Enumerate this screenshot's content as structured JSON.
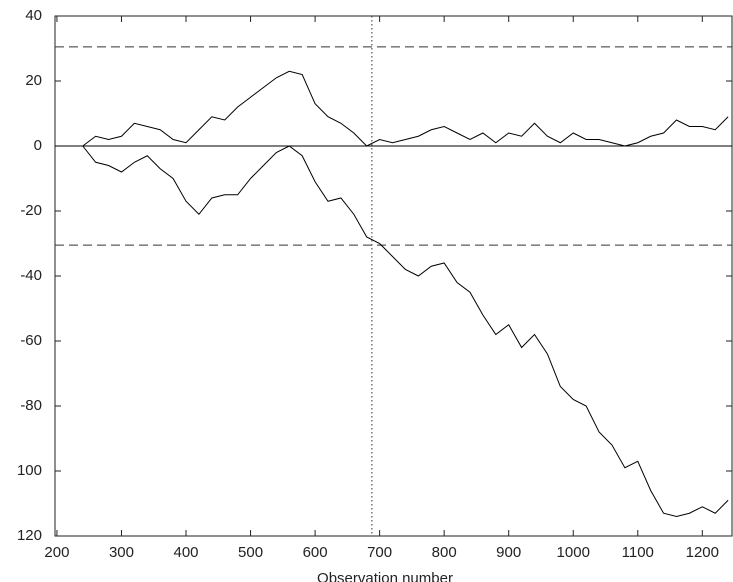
{
  "chart_data": {
    "type": "line",
    "x_label": "Observation number",
    "x": [
      240,
      260,
      280,
      300,
      320,
      340,
      360,
      380,
      400,
      420,
      440,
      460,
      480,
      500,
      520,
      540,
      560,
      580,
      600,
      620,
      640,
      660,
      680,
      700,
      720,
      740,
      760,
      780,
      800,
      820,
      840,
      860,
      880,
      900,
      920,
      940,
      960,
      980,
      1000,
      1020,
      1040,
      1060,
      1080,
      1100,
      1120,
      1140,
      1160,
      1180,
      1200,
      1220,
      1240
    ],
    "series": [
      {
        "color": "#000000",
        "values": [
          0,
          3,
          2,
          3,
          7,
          6,
          5,
          2,
          1,
          5,
          9,
          8,
          12,
          15,
          18,
          21,
          23,
          22,
          13,
          9,
          7,
          4,
          0,
          2,
          1,
          2,
          3,
          5,
          6,
          4,
          2,
          4,
          1,
          4,
          3,
          7,
          3,
          1,
          4,
          2,
          2,
          1,
          0,
          1,
          3,
          4,
          8,
          6,
          6,
          5,
          9
        ]
      },
      {
        "color": "#000000",
        "values": [
          0,
          -5,
          -6,
          -8,
          -5,
          -3,
          -7,
          -10,
          -17,
          -21,
          -16,
          -15,
          -15,
          -10,
          -6,
          -2,
          0,
          -3,
          -11,
          -17,
          -16,
          -21,
          -28,
          -30,
          -34,
          -38,
          -40,
          -37,
          -36,
          -42,
          -45,
          -52,
          -58,
          -55,
          -62,
          -58,
          -64,
          -74,
          -78,
          -80,
          -88,
          -92,
          -99,
          -97,
          -106,
          -113,
          -114,
          -113,
          -111,
          -113,
          -109
        ]
      }
    ],
    "xlim": [
      197,
      1246
    ],
    "xticks": [
      200,
      300,
      400,
      500,
      600,
      700,
      800,
      900,
      1000,
      1100,
      1200
    ],
    "ylim": [
      -120,
      40
    ],
    "yticks": [
      40,
      20,
      0,
      -20,
      -40,
      -60,
      -80,
      {
        "value": -100,
        "label": "100"
      },
      {
        "value": -120,
        "label": "120"
      }
    ],
    "control_limits": [
      30.5,
      -30.5
    ],
    "zero_line": 0,
    "change_point": 688
  }
}
